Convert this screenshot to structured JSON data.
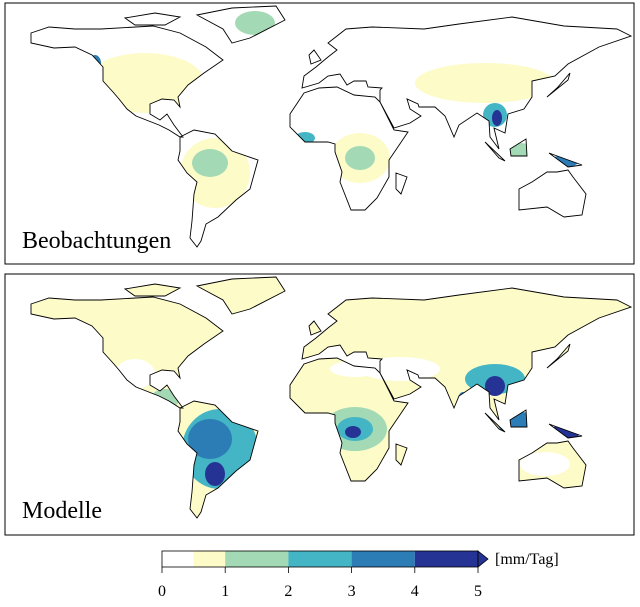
{
  "panels": [
    {
      "label": "Beobachtungen"
    },
    {
      "label": "Modelle"
    }
  ],
  "colorbar": {
    "levels": [
      0,
      0.5,
      1,
      2,
      3,
      4,
      5
    ],
    "colors": [
      "#ffffff",
      "#fdfbc8",
      "#a3dab5",
      "#44b5c5",
      "#2c7cb6",
      "#253494"
    ],
    "ticks": [
      0,
      1,
      2,
      3,
      4,
      5
    ],
    "unit": "[mm/Tag]",
    "extend": "max"
  }
}
